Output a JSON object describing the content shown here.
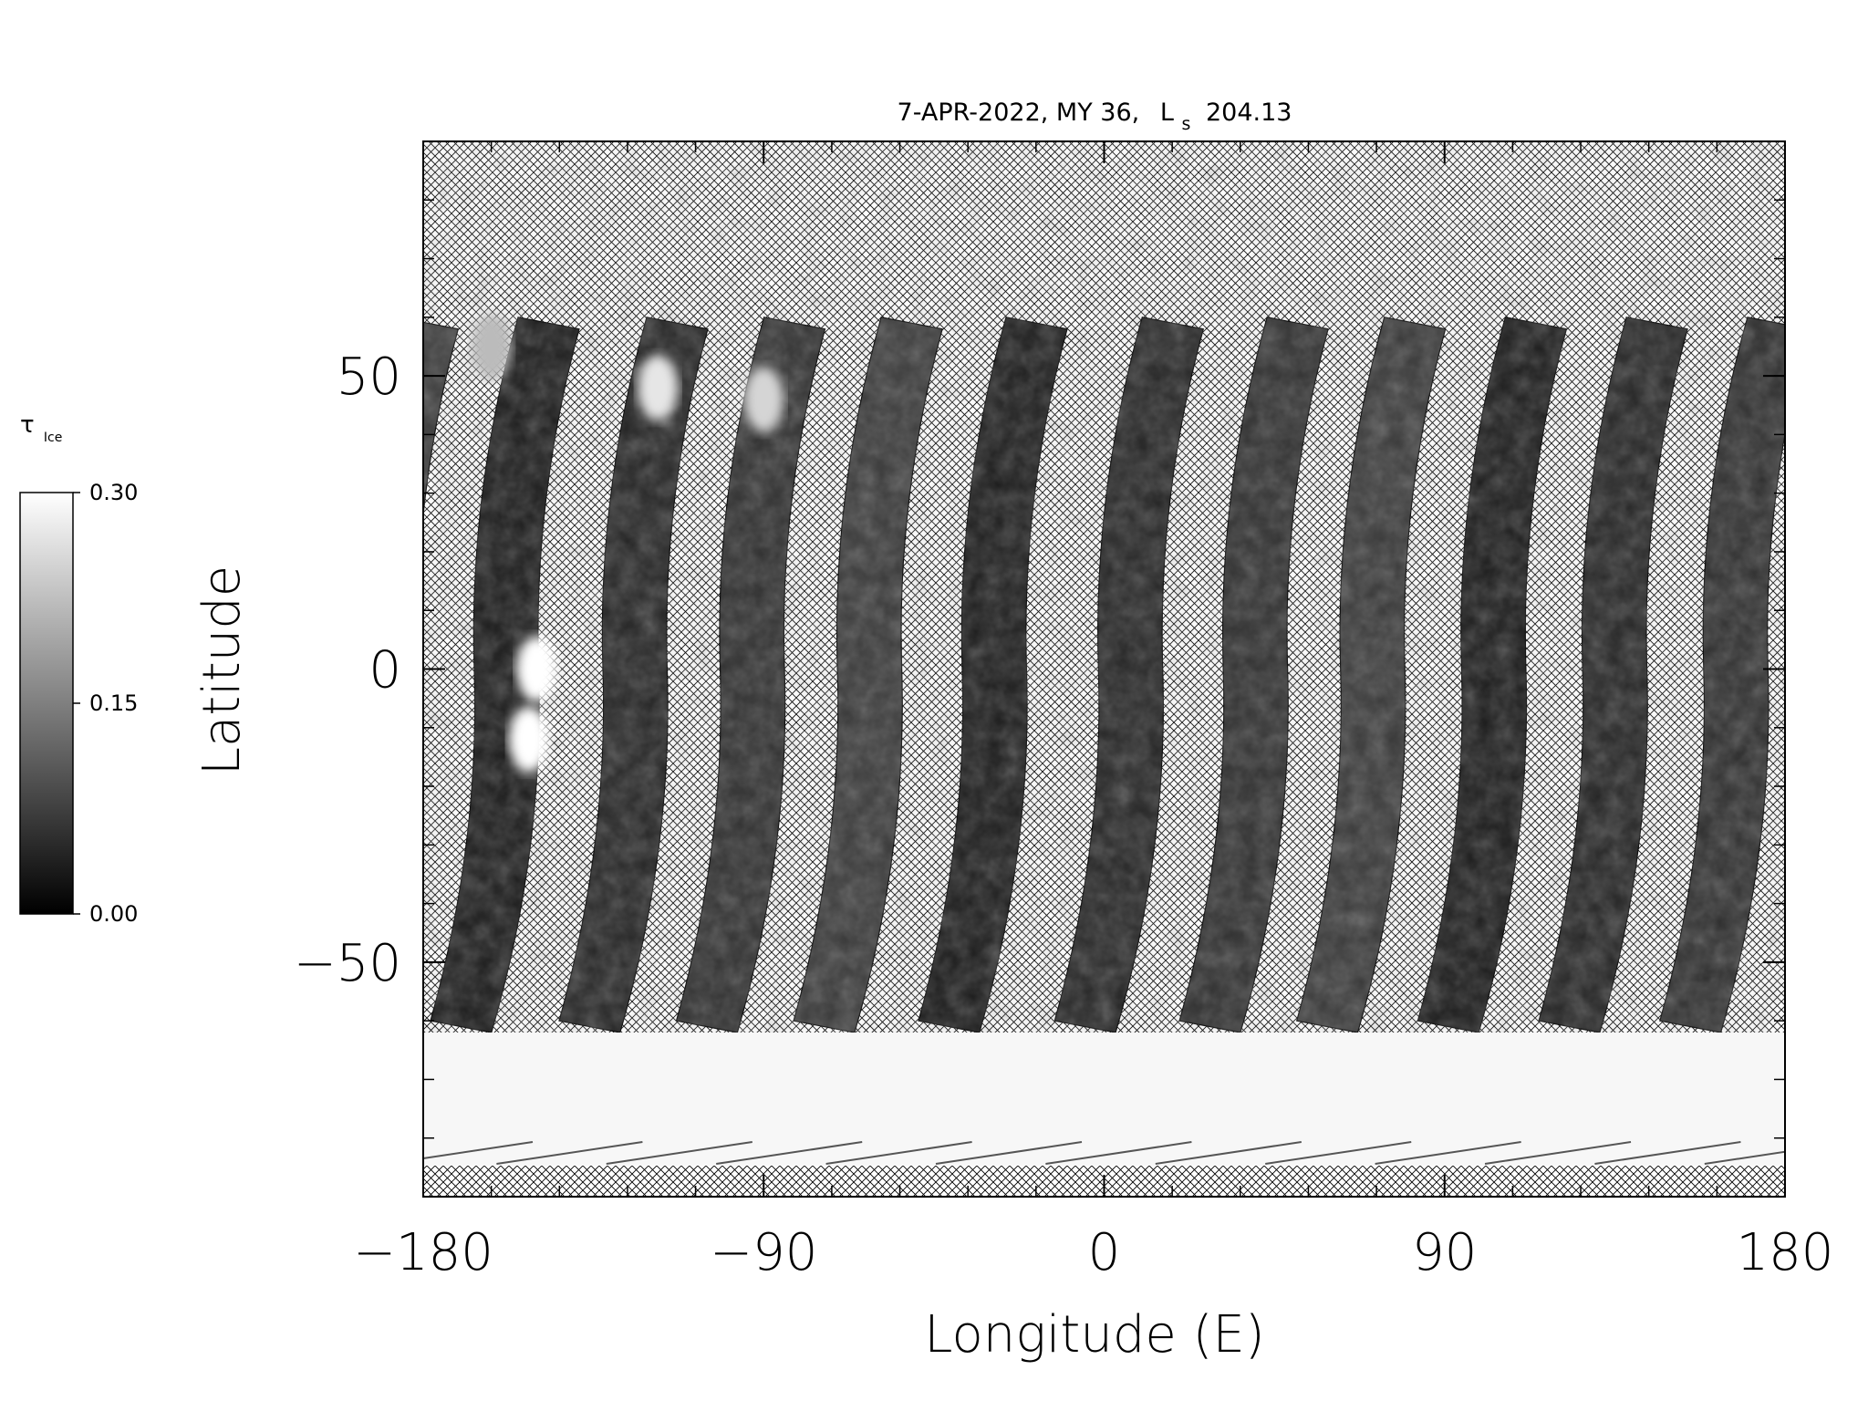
{
  "chart_data": {
    "type": "heatmap",
    "title": "7-APR-2022, MY 36,",
    "title_ls_symbol": "L",
    "title_ls_subscript": "s",
    "title_ls_value": "204.13",
    "xlabel": "Longitude (E)",
    "ylabel": "Latitude",
    "xlim": [
      -180,
      180
    ],
    "ylim": [
      -90,
      90
    ],
    "x_ticks": [
      -180,
      -90,
      0,
      90,
      180
    ],
    "x_tick_labels": [
      "−180",
      "−90",
      "0",
      "90",
      "180"
    ],
    "y_ticks": [
      -50,
      0,
      50
    ],
    "y_tick_labels": [
      "−50",
      "0",
      "50"
    ],
    "x_minor_step": 18,
    "y_minor_step": 10,
    "colorbar": {
      "symbol": "τ",
      "subscript": "Ice",
      "min": 0.0,
      "max": 0.3,
      "tick_values": [
        0.0,
        0.15,
        0.3
      ],
      "tick_labels": [
        "0.00",
        "0.15",
        "0.30"
      ],
      "color_min": "#000000",
      "color_max": "#ffffff"
    },
    "hatch_meaning": "no data",
    "orbit_swaths": {
      "count": 13,
      "equator_crossing_lon": [
        -158,
        -124,
        -93,
        -62,
        -29,
        7,
        40,
        71,
        103,
        135,
        167,
        -190,
        200
      ],
      "north_edge_lat": 60,
      "south_edge_lat": -62
    },
    "south_polar_cap": {
      "lat_from": -90,
      "lat_to": -62,
      "value": 0.29
    },
    "highlights": [
      {
        "lon": -150,
        "lat": 0,
        "value": 0.3
      },
      {
        "lon": -152,
        "lat": -12,
        "value": 0.3
      },
      {
        "lon": -118,
        "lat": 48,
        "value": 0.27
      },
      {
        "lon": -90,
        "lat": 46,
        "value": 0.25
      },
      {
        "lon": -162,
        "lat": 55,
        "value": 0.22
      }
    ]
  }
}
